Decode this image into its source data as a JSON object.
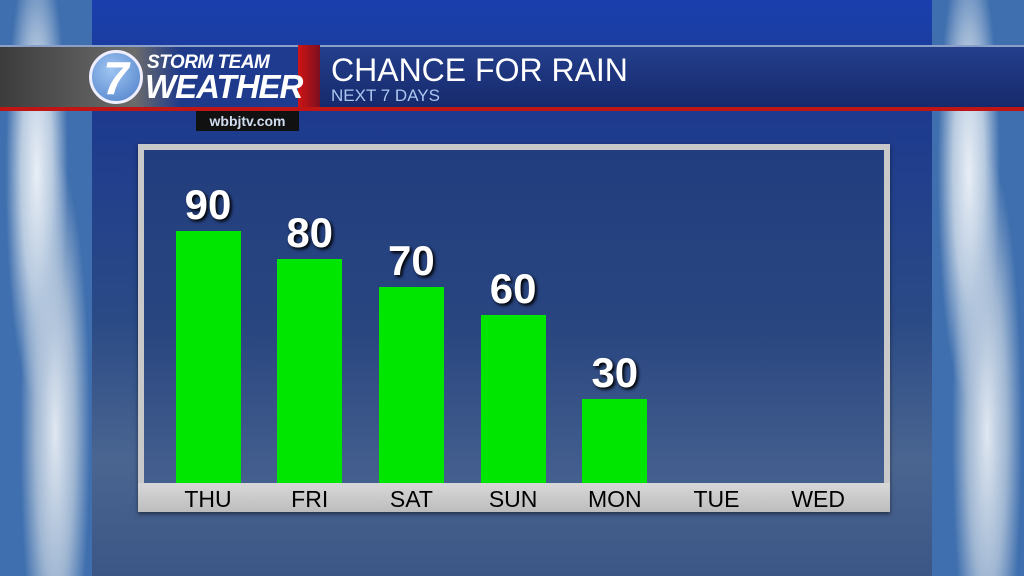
{
  "header": {
    "logo_line1": "STORM TEAM",
    "logo_line2": "WEATHER",
    "logo_numeral": "7",
    "title": "CHANCE FOR RAIN",
    "subtitle": "NEXT 7 DAYS",
    "website": "wbbjtv.com"
  },
  "colors": {
    "bar": "#00e600",
    "accent_red": "#c01515",
    "header_blue": "#1d3580"
  },
  "chart_data": {
    "type": "bar",
    "title": "CHANCE FOR RAIN",
    "subtitle": "NEXT 7 DAYS",
    "categories": [
      "THU",
      "FRI",
      "SAT",
      "SUN",
      "MON",
      "TUE",
      "WED"
    ],
    "values": [
      90,
      80,
      70,
      60,
      30,
      null,
      null
    ],
    "ylim": [
      0,
      100
    ],
    "grid": false,
    "data_labels": true
  }
}
